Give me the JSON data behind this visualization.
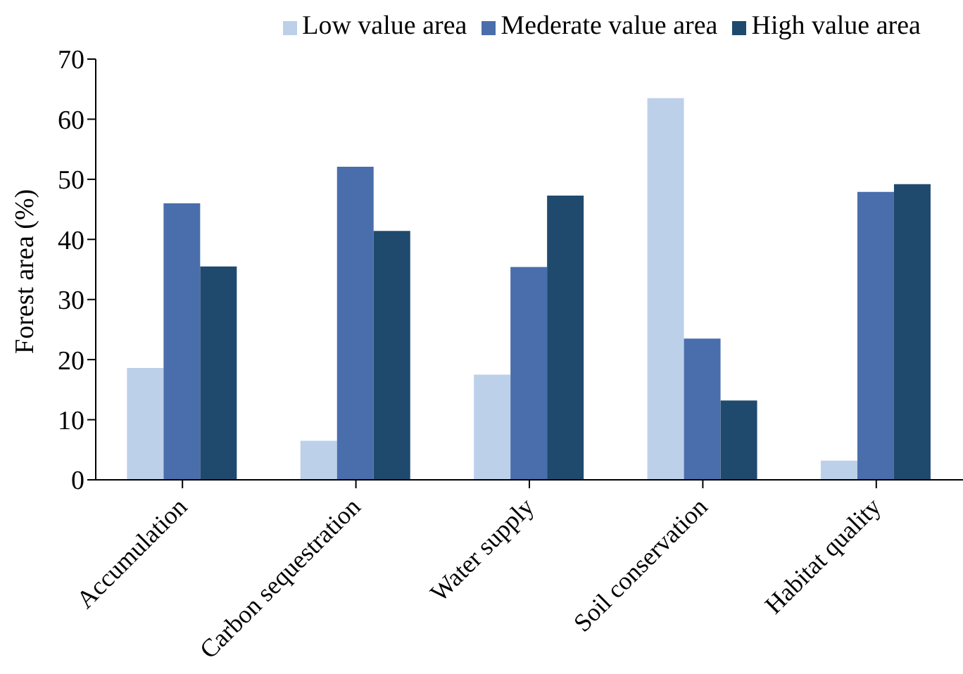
{
  "chart_data": {
    "type": "bar",
    "ylabel": "Forest area (%)",
    "categories": [
      "Accumulation",
      "Carbon sequestration",
      "Water supply",
      "Soil conservation",
      "Habitat quality"
    ],
    "series": [
      {
        "name": "Low value area",
        "color": "#bdd0ea",
        "values": [
          18.6,
          6.5,
          17.5,
          63.5,
          3.2
        ]
      },
      {
        "name": "Mederate value area",
        "color": "#4a6eac",
        "values": [
          46.0,
          52.1,
          35.4,
          23.5,
          47.9
        ]
      },
      {
        "name": "High value area",
        "color": "#1f4a6e",
        "values": [
          35.5,
          41.4,
          47.3,
          13.2,
          49.2
        ]
      }
    ],
    "ylim": [
      0,
      70
    ],
    "yticks": [
      0,
      10,
      20,
      30,
      40,
      50,
      60,
      70
    ],
    "grid": false,
    "legend": "top right"
  }
}
